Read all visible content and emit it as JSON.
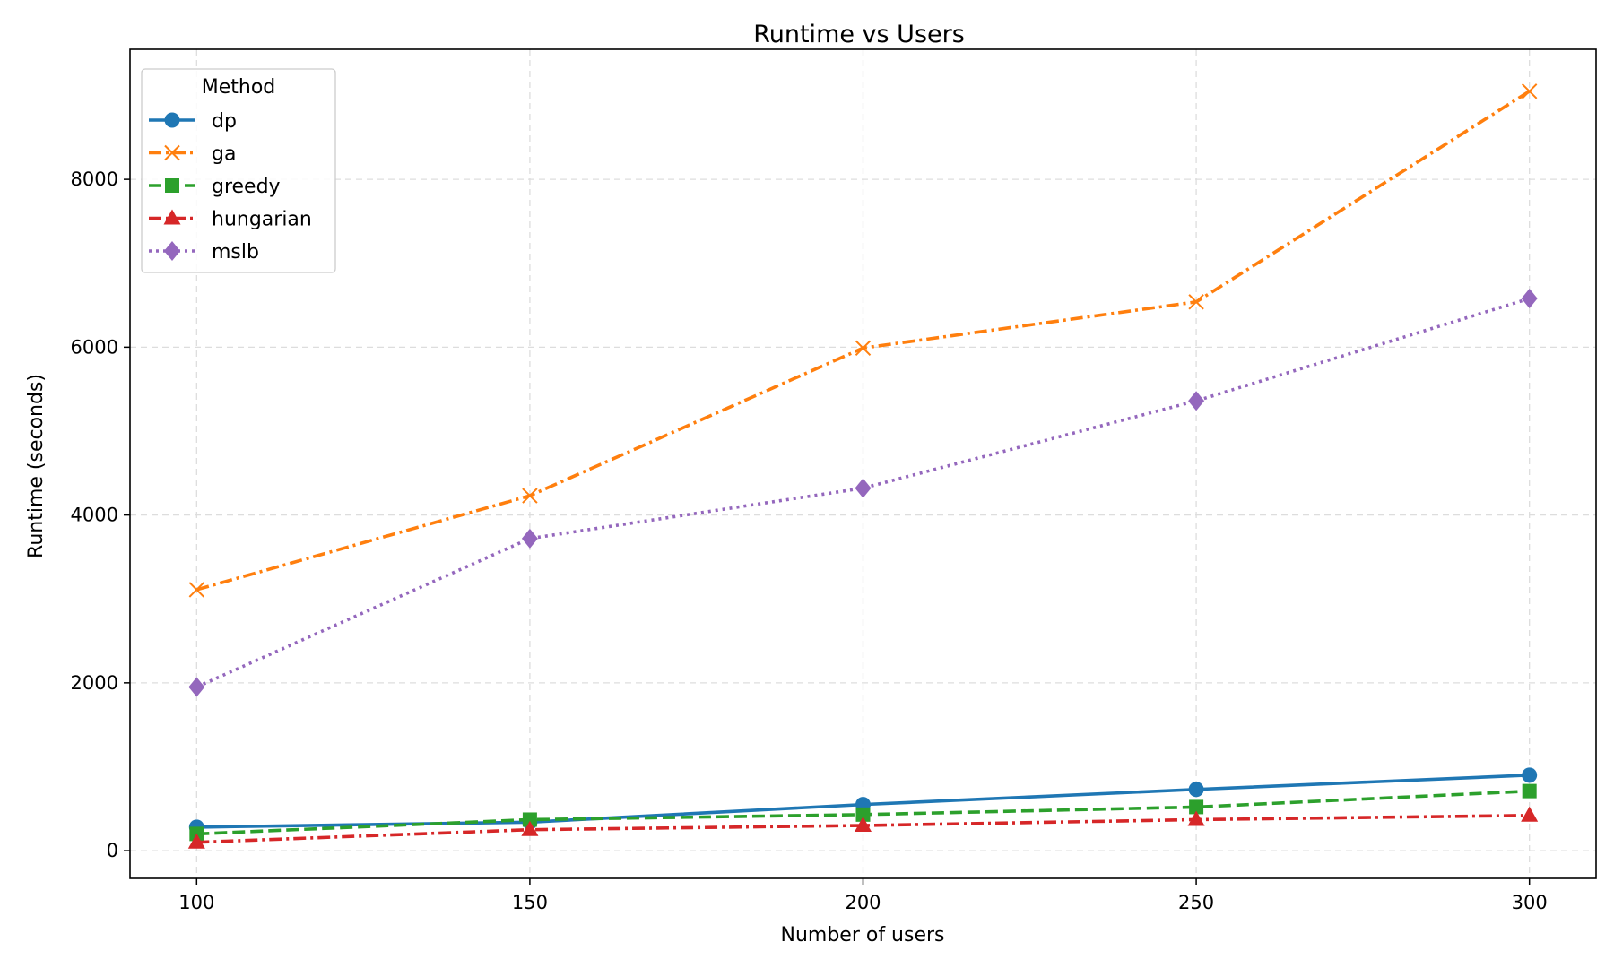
{
  "chart_data": {
    "type": "line",
    "title": "Runtime vs Users",
    "xlabel": "Number of users",
    "ylabel": "Runtime (seconds)",
    "x": [
      100,
      150,
      200,
      250,
      300
    ],
    "xlim": [
      90,
      310
    ],
    "ylim": [
      -330,
      9550
    ],
    "xticks": [
      100,
      150,
      200,
      250,
      300
    ],
    "yticks": [
      0,
      2000,
      4000,
      6000,
      8000
    ],
    "grid": true,
    "legend": {
      "title": "Method",
      "placement": "top-left"
    },
    "series": [
      {
        "name": "dp",
        "color": "#1f77b4",
        "marker": "circle",
        "linestyle": "solid",
        "values": [
          280,
          340,
          550,
          730,
          900
        ]
      },
      {
        "name": "ga",
        "color": "#ff7f0e",
        "marker": "x",
        "linestyle": "dashdot",
        "values": [
          3110,
          4230,
          5990,
          6540,
          9050
        ]
      },
      {
        "name": "greedy",
        "color": "#2ca02c",
        "marker": "square",
        "linestyle": "dashed",
        "values": [
          200,
          370,
          430,
          520,
          710
        ]
      },
      {
        "name": "hungarian",
        "color": "#d62728",
        "marker": "triangle",
        "linestyle": "dashdot",
        "values": [
          100,
          250,
          300,
          370,
          420
        ]
      },
      {
        "name": "mslb",
        "color": "#9467bd",
        "marker": "diamond",
        "linestyle": "dotted",
        "values": [
          1950,
          3720,
          4320,
          5360,
          6580
        ]
      }
    ]
  }
}
